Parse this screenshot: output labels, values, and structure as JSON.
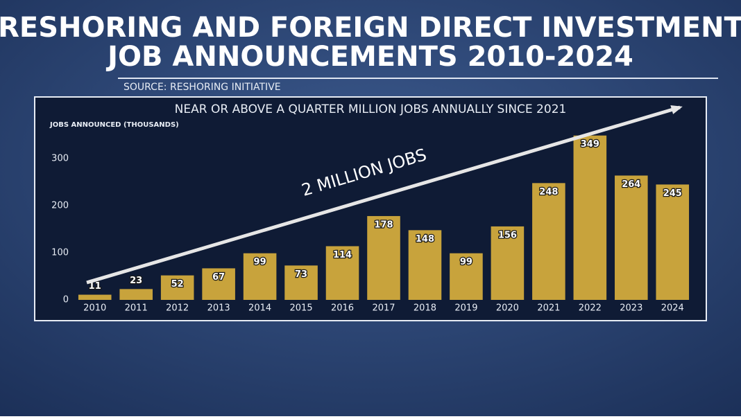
{
  "chart_data": {
    "type": "bar",
    "title": [
      "RESHORING AND FOREIGN DIRECT INVESTMENT",
      "JOB ANNOUNCEMENTS 2010-2024"
    ],
    "source": "SOURCE: RESHORING INITIATIVE",
    "subtitle": "NEAR OR ABOVE A QUARTER MILLION JOBS ANNUALLY SINCE 2021",
    "y_label": "JOBS ANNOUNCED (THOUSANDS)",
    "annotation": "2 MILLION JOBS",
    "categories": [
      "2010",
      "2011",
      "2012",
      "2013",
      "2014",
      "2015",
      "2016",
      "2017",
      "2018",
      "2019",
      "2020",
      "2021",
      "2022",
      "2023",
      "2024"
    ],
    "values": [
      11,
      23,
      52,
      67,
      99,
      73,
      114,
      178,
      148,
      99,
      156,
      248,
      349,
      264,
      245
    ],
    "color": "#c8a33c",
    "ylim": [
      0,
      350
    ],
    "yticks": [
      0,
      100,
      200,
      300
    ],
    "grid": false
  }
}
